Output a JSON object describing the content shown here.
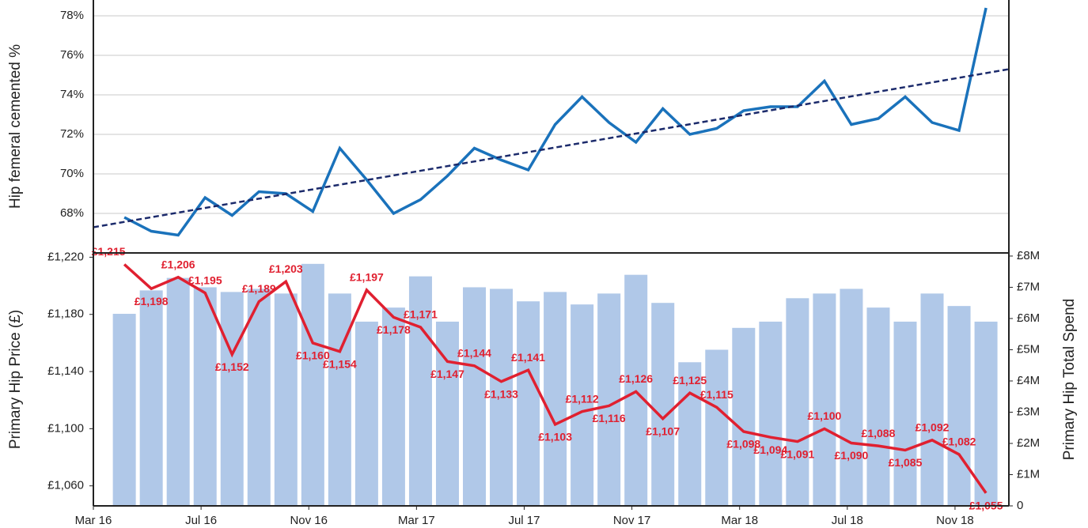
{
  "chart_data": [
    {
      "type": "line",
      "y_label": "Hip femeral cemented %",
      "ylim": [
        66,
        78.6
      ],
      "yticks": [
        {
          "value": 68,
          "label": "68%"
        },
        {
          "value": 70,
          "label": "70%"
        },
        {
          "value": 72,
          "label": "72%"
        },
        {
          "value": 74,
          "label": "74%"
        },
        {
          "value": 76,
          "label": "76%"
        },
        {
          "value": 78,
          "label": "78%"
        }
      ],
      "grid": true,
      "x": [
        "2016-04",
        "2016-05",
        "2016-06",
        "2016-07",
        "2016-08",
        "2016-09",
        "2016-10",
        "2016-11",
        "2016-12",
        "2017-01",
        "2017-02",
        "2017-03",
        "2017-04",
        "2017-05",
        "2017-06",
        "2017-07",
        "2017-08",
        "2017-09",
        "2017-10",
        "2017-11",
        "2017-12",
        "2018-01",
        "2018-02",
        "2018-03",
        "2018-04",
        "2018-05",
        "2018-06",
        "2018-07",
        "2018-08",
        "2018-09",
        "2018-10",
        "2018-11",
        "2018-12"
      ],
      "series": [
        {
          "color": "#1a72bb",
          "values": [
            67.8,
            67.1,
            66.9,
            68.8,
            67.9,
            69.1,
            69.0,
            68.1,
            71.3,
            69.7,
            68.0,
            68.7,
            69.9,
            71.3,
            70.7,
            70.2,
            72.5,
            73.9,
            72.6,
            71.6,
            73.3,
            72.0,
            72.3,
            73.2,
            73.4,
            73.4,
            74.7,
            72.5,
            72.8,
            73.9,
            72.6,
            72.2,
            78.4
          ]
        },
        {
          "color": "#1b2a6b",
          "dashed": true,
          "x": [
            "2016-03",
            "2019-01"
          ],
          "values": [
            67.3,
            75.3
          ]
        }
      ]
    },
    {
      "type": "bar",
      "y_label": "Primary Hip Price (£)",
      "y2_label": "Primary Hip Total Spend",
      "xlim": [
        "2016-03",
        "2019-01"
      ],
      "xticks": [
        {
          "value": "2016-03",
          "label": "Mar 16"
        },
        {
          "value": "2016-07",
          "label": "Jul 16"
        },
        {
          "value": "2016-11",
          "label": "Nov 16"
        },
        {
          "value": "2017-03",
          "label": "Mar 17"
        },
        {
          "value": "2017-07",
          "label": "Jul 17"
        },
        {
          "value": "2017-11",
          "label": "Nov 17"
        },
        {
          "value": "2018-03",
          "label": "Mar 18"
        },
        {
          "value": "2018-07",
          "label": "Jul 18"
        },
        {
          "value": "2018-11",
          "label": "Nov 18"
        }
      ],
      "ylim": [
        1046,
        1223
      ],
      "yticks": [
        {
          "value": 1060,
          "label": "£1,060"
        },
        {
          "value": 1100,
          "label": "£1,100"
        },
        {
          "value": 1140,
          "label": "£1,140"
        },
        {
          "value": 1180,
          "label": "£1,180"
        },
        {
          "value": 1220,
          "label": "£1,220"
        }
      ],
      "y2lim": [
        0,
        8100000
      ],
      "y2ticks": [
        0,
        {
          "value": 1000000,
          "label": "£1M"
        },
        {
          "value": 2000000,
          "label": "£2M"
        },
        {
          "value": 3000000,
          "label": "£3M"
        },
        {
          "value": 4000000,
          "label": "£4M"
        },
        {
          "value": 5000000,
          "label": "£5M"
        },
        {
          "value": 6000000,
          "label": "£6M"
        },
        {
          "value": 7000000,
          "label": "£7M"
        },
        {
          "value": 8000000,
          "label": "£8M"
        }
      ],
      "series": [
        {
          "type": "bar",
          "axis": "y2",
          "color": "#b0c8e8",
          "values": [
            6150000,
            6900000,
            7300000,
            7000000,
            6850000,
            6950000,
            6800000,
            7750000,
            6800000,
            5900000,
            6350000,
            7350000,
            5900000,
            7000000,
            6950000,
            6550000,
            6850000,
            6450000,
            6800000,
            7400000,
            6500000,
            4600000,
            5000000,
            5700000,
            5900000,
            6650000,
            6800000,
            6950000,
            6350000,
            5900000,
            6800000,
            6400000,
            5900000
          ]
        },
        {
          "type": "line",
          "axis": "y",
          "color": "#e02030",
          "values": [
            1215,
            1198,
            1206,
            1195,
            1152,
            1189,
            1203,
            1160,
            1154,
            1197,
            1178,
            1171,
            1147,
            1144,
            1133,
            1141,
            1103,
            1112,
            1116,
            1126,
            1107,
            1125,
            1115,
            1098,
            1094,
            1091,
            1100,
            1090,
            1088,
            1085,
            1092,
            1082,
            1055
          ],
          "value_labels": [
            "£1,215",
            "£1,198",
            "£1,206",
            "£1,195",
            "£1,152",
            "£1,189",
            "£1,203",
            "£1,160",
            "£1,154",
            "£1,197",
            "£1,178",
            "£1,171",
            "£1,147",
            "£1,144",
            "£1,133",
            "£1,141",
            "£1,103",
            "£1,112",
            "£1,116",
            "£1,126",
            "£1,107",
            "£1,125",
            "£1,115",
            "£1,098",
            "£1,094",
            "£1,091",
            "£1,100",
            "£1,090",
            "£1,088",
            "£1,085",
            "£1,092",
            "£1,082",
            "£1,055"
          ]
        }
      ]
    }
  ]
}
